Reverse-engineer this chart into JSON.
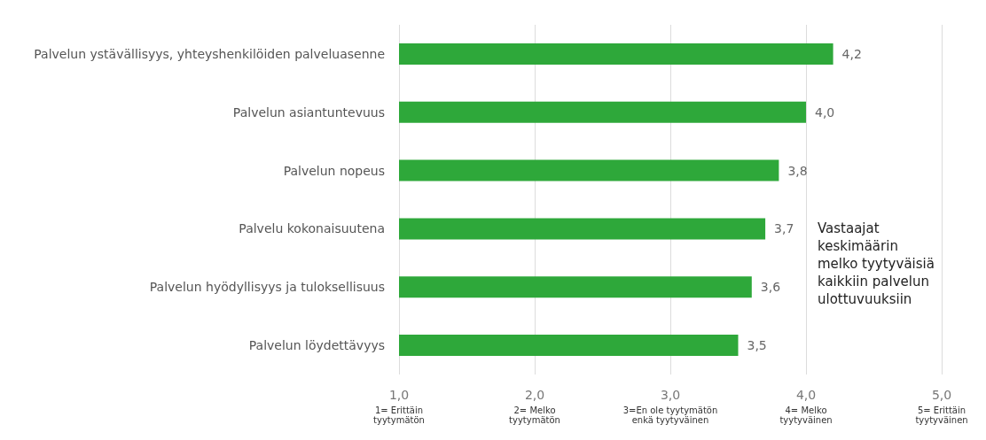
{
  "chart_data": {
    "type": "bar",
    "orientation": "horizontal",
    "categories": [
      "Palvelun ystävällisyys, yhteyshenkilöiden palveluasenne",
      "Palvelun asiantuntevuus",
      "Palvelun nopeus",
      "Palvelu kokonaisuutena",
      "Palvelun hyödyllisyys ja tuloksellisuus",
      "Palvelun löydettävyys"
    ],
    "values": [
      4.2,
      4.0,
      3.8,
      3.7,
      3.6,
      3.5
    ],
    "value_labels": [
      "4,2",
      "4,0",
      "3,8",
      "3,7",
      "3,6",
      "3,5"
    ],
    "color": "#2ea83a",
    "xlim": [
      1,
      5
    ],
    "xticks": [
      {
        "value": 1,
        "label": "1,0"
      },
      {
        "value": 2,
        "label": "2,0"
      },
      {
        "value": 3,
        "label": "3,0"
      },
      {
        "value": 4,
        "label": "4,0"
      },
      {
        "value": 5,
        "label": "5,0"
      }
    ],
    "grid": "x",
    "annotations": [
      "Vastaajat\nkeskimäärin\nmelko tyytyväisiä\nkaikkiin palvelun\nulottuvuuksiin",
      "1= Erittäin\ntyytymätön",
      "2= Melko\ntyytymätön",
      "3=En ole tyytymätön\nenkä tyytyväinen",
      "4= Melko\ntyytyväinen",
      "5= Erittäin\ntyytyväinen"
    ]
  }
}
